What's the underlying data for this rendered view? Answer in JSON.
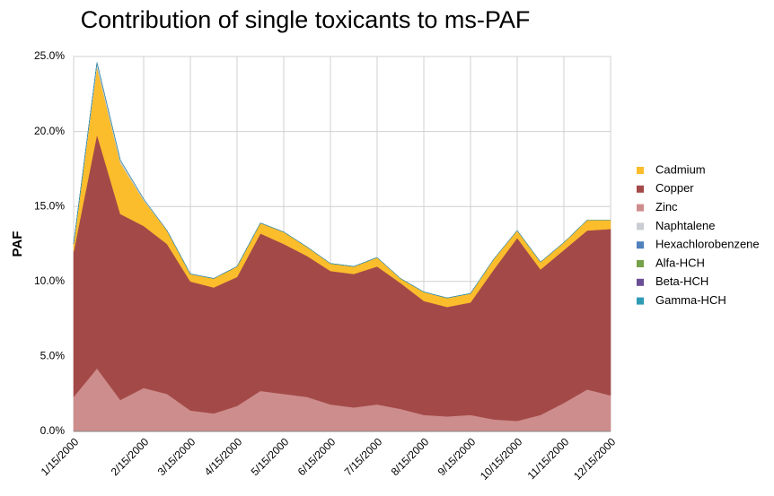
{
  "chart_data": {
    "type": "stacked_area",
    "title": "Contribution of single toxicants to ms-PAF",
    "y_label": "PAF",
    "categories": [
      "1/15/2000",
      null,
      null,
      "2/15/2000",
      null,
      "3/15/2000",
      null,
      "4/15/2000",
      null,
      "5/15/2000",
      null,
      "6/15/2000",
      null,
      "7/15/2000",
      null,
      "8/15/2000",
      null,
      "9/15/2000",
      null,
      "10/15/2000",
      null,
      "11/15/2000",
      null,
      "12/15/2000"
    ],
    "series": [
      {
        "name": "Zinc",
        "color": "#cd8d8c",
        "values": [
          2.3,
          4.2,
          2.1,
          2.9,
          2.5,
          1.4,
          1.2,
          1.7,
          2.7,
          2.5,
          2.3,
          1.8,
          1.6,
          1.8,
          1.5,
          1.1,
          1.0,
          1.1,
          0.8,
          0.7,
          1.1,
          1.9,
          2.8,
          2.4
        ]
      },
      {
        "name": "Copper",
        "color": "#a34a48",
        "values": [
          9.7,
          15.6,
          12.4,
          10.8,
          10.0,
          8.6,
          8.4,
          8.6,
          10.5,
          10.0,
          9.4,
          8.9,
          8.9,
          9.2,
          8.4,
          7.6,
          7.3,
          7.5,
          10.0,
          12.2,
          9.7,
          10.2,
          10.6,
          11.1
        ]
      },
      {
        "name": "Cadmium",
        "color": "#fbbd2c",
        "values": [
          0.5,
          4.5,
          3.4,
          1.7,
          0.9,
          0.5,
          0.6,
          0.7,
          0.7,
          0.8,
          0.6,
          0.5,
          0.5,
          0.6,
          0.3,
          0.6,
          0.6,
          0.6,
          0.7,
          0.5,
          0.5,
          0.5,
          0.7,
          0.6
        ]
      },
      {
        "name": "Naphtalene",
        "color": "#c9cdd3",
        "values": [
          0,
          0.3,
          0.2,
          0.1,
          0,
          0,
          0,
          0,
          0,
          0,
          0,
          0,
          0,
          0,
          0,
          0,
          0,
          0,
          0,
          0,
          0,
          0,
          0,
          0
        ]
      },
      {
        "name": "Hexachlorobenzene",
        "color": "#4f81bd",
        "values": [
          0,
          0,
          0,
          0,
          0,
          0,
          0,
          0,
          0,
          0,
          0,
          0,
          0,
          0,
          0,
          0,
          0,
          0,
          0,
          0,
          0,
          0,
          0,
          0
        ]
      },
      {
        "name": "Alfa-HCH",
        "color": "#77a14a",
        "values": [
          0,
          0,
          0,
          0,
          0,
          0,
          0,
          0,
          0,
          0,
          0,
          0,
          0,
          0,
          0,
          0,
          0,
          0,
          0,
          0,
          0,
          0,
          0,
          0
        ]
      },
      {
        "name": "Beta-HCH",
        "color": "#6b4f96",
        "values": [
          0,
          0,
          0,
          0,
          0,
          0,
          0,
          0,
          0,
          0,
          0,
          0,
          0,
          0,
          0,
          0,
          0,
          0,
          0,
          0,
          0,
          0,
          0,
          0
        ]
      },
      {
        "name": "Gamma-HCH",
        "color": "#2e9bb5",
        "values": [
          0,
          0,
          0,
          0,
          0,
          0,
          0,
          0,
          0,
          0,
          0,
          0,
          0,
          0,
          0,
          0,
          0,
          0,
          0,
          0,
          0,
          0,
          0,
          0
        ]
      }
    ],
    "legend_order": [
      "Cadmium",
      "Copper",
      "Zinc",
      "Naphtalene",
      "Hexachlorobenzene",
      "Alfa-HCH",
      "Beta-HCH",
      "Gamma-HCH"
    ],
    "ylim": [
      0,
      25
    ],
    "yticks": [
      {
        "value": 0,
        "label": "0.0%"
      },
      {
        "value": 5,
        "label": "5.0%"
      },
      {
        "value": 10,
        "label": "10.0%"
      },
      {
        "value": 15,
        "label": "15.0%"
      },
      {
        "value": 20,
        "label": "20.0%"
      },
      {
        "value": 25,
        "label": "25.0%"
      }
    ],
    "grid": true,
    "legend": "right"
  }
}
